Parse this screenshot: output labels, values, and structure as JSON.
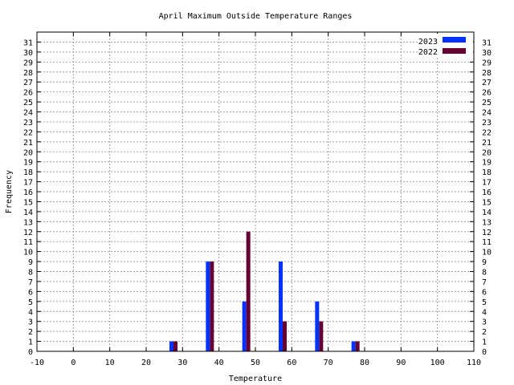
{
  "chart_data": {
    "type": "bar",
    "title": "April Maximum Outside Temperature Ranges",
    "xlabel": "Temperature",
    "ylabel": "Frequency",
    "xlim": [
      -10,
      110
    ],
    "ylim": [
      0,
      32
    ],
    "x_ticks": [
      -10,
      0,
      10,
      20,
      30,
      40,
      50,
      60,
      70,
      80,
      90,
      100,
      110
    ],
    "y_ticks": [
      0,
      1,
      2,
      3,
      4,
      5,
      6,
      7,
      8,
      9,
      10,
      11,
      12,
      13,
      14,
      15,
      16,
      17,
      18,
      19,
      20,
      21,
      22,
      23,
      24,
      25,
      26,
      27,
      28,
      29,
      30,
      31
    ],
    "grid": true,
    "legend_position": "top-right",
    "x": [
      27.5,
      37.5,
      47.5,
      57.5,
      67.5,
      77.5
    ],
    "series": [
      {
        "name": "2023",
        "color": "#0033ff",
        "values": [
          1,
          9,
          5,
          9,
          5,
          1
        ]
      },
      {
        "name": "2022",
        "color": "#660033",
        "values": [
          1,
          9,
          12,
          3,
          3,
          1
        ]
      }
    ]
  }
}
